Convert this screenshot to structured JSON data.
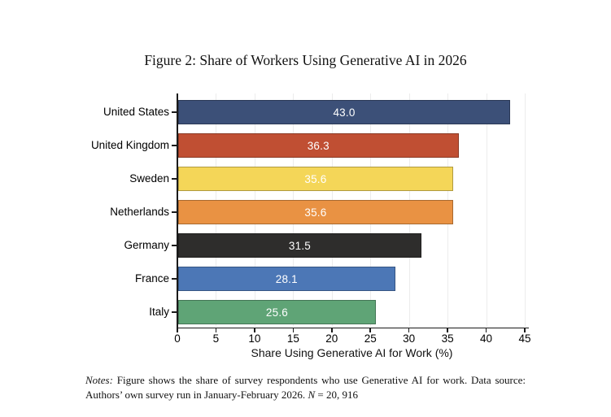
{
  "title": "Figure 2: Share of Workers Using Generative AI in 2026",
  "chart_data": {
    "type": "bar",
    "orientation": "horizontal",
    "title": "Figure 2: Share of Workers Using Generative AI in 2026",
    "categories": [
      "United States",
      "United Kingdom",
      "Sweden",
      "Netherlands",
      "Germany",
      "France",
      "Italy"
    ],
    "values": [
      43.0,
      36.3,
      35.6,
      35.6,
      31.5,
      28.1,
      25.6
    ],
    "value_labels": [
      "43.0",
      "36.3",
      "35.6",
      "35.6",
      "31.5",
      "28.1",
      "25.6"
    ],
    "bar_colors": [
      "#3C5078",
      "#C04F33",
      "#F4D658",
      "#E99243",
      "#2E2D2C",
      "#4C77B6",
      "#5FA476"
    ],
    "value_label_color": "#ffffff",
    "xlabel": "Share Using Generative AI for Work (%)",
    "ylabel": "",
    "xlim": [
      0,
      45
    ],
    "xticks": [
      0,
      5,
      10,
      15,
      20,
      25,
      30,
      35,
      40,
      45
    ],
    "grid": "vertical-light",
    "gridline_color": "#ececec",
    "legend": "none"
  },
  "notes": {
    "label": "Notes:",
    "line1_rest": " Figure shows the share of survey respondents who use Generative AI for work. Data source:",
    "line2_pre": "Authors’ own survey run in January-February 2026. ",
    "n_symbol": "N",
    "n_rest": " = 20, 916"
  }
}
